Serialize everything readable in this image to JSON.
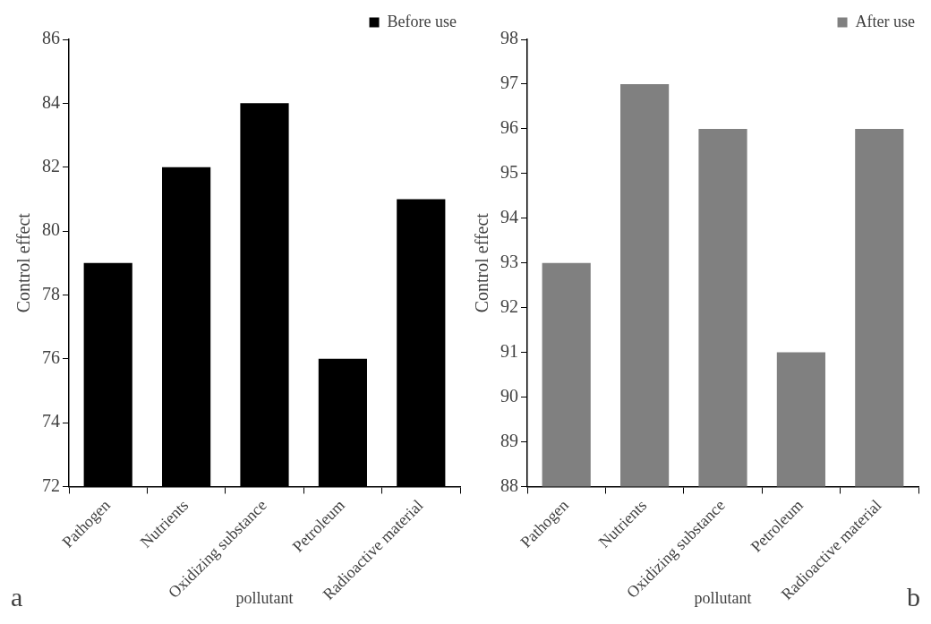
{
  "chart_data": [
    {
      "type": "bar",
      "xlabel": "pollutant",
      "ylabel": "Control effect",
      "categories": [
        "Pathogen",
        "Nutrients",
        "Oxidizing substance",
        "Petroleum",
        "Radioactive material"
      ],
      "series": [
        {
          "name": "Before use",
          "color": "#000000",
          "values": [
            79,
            82,
            84,
            76,
            81
          ]
        }
      ],
      "ylim": [
        72,
        86
      ],
      "yticks": [
        72,
        74,
        76,
        78,
        80,
        82,
        84,
        86
      ],
      "grid": false,
      "legend": "top right",
      "annotations": [
        "a"
      ]
    },
    {
      "type": "bar",
      "xlabel": "pollutant",
      "ylabel": "Control effect",
      "categories": [
        "Pathogen",
        "Nutrients",
        "Oxidizing substance",
        "Petroleum",
        "Radioactive material"
      ],
      "series": [
        {
          "name": "After use",
          "color": "#808080",
          "values": [
            93,
            97,
            96,
            91,
            96
          ]
        }
      ],
      "ylim": [
        88,
        98
      ],
      "yticks": [
        88,
        89,
        90,
        91,
        92,
        93,
        94,
        95,
        96,
        97,
        98
      ],
      "grid": false,
      "legend": "top right",
      "annotations": [
        "b"
      ]
    }
  ]
}
